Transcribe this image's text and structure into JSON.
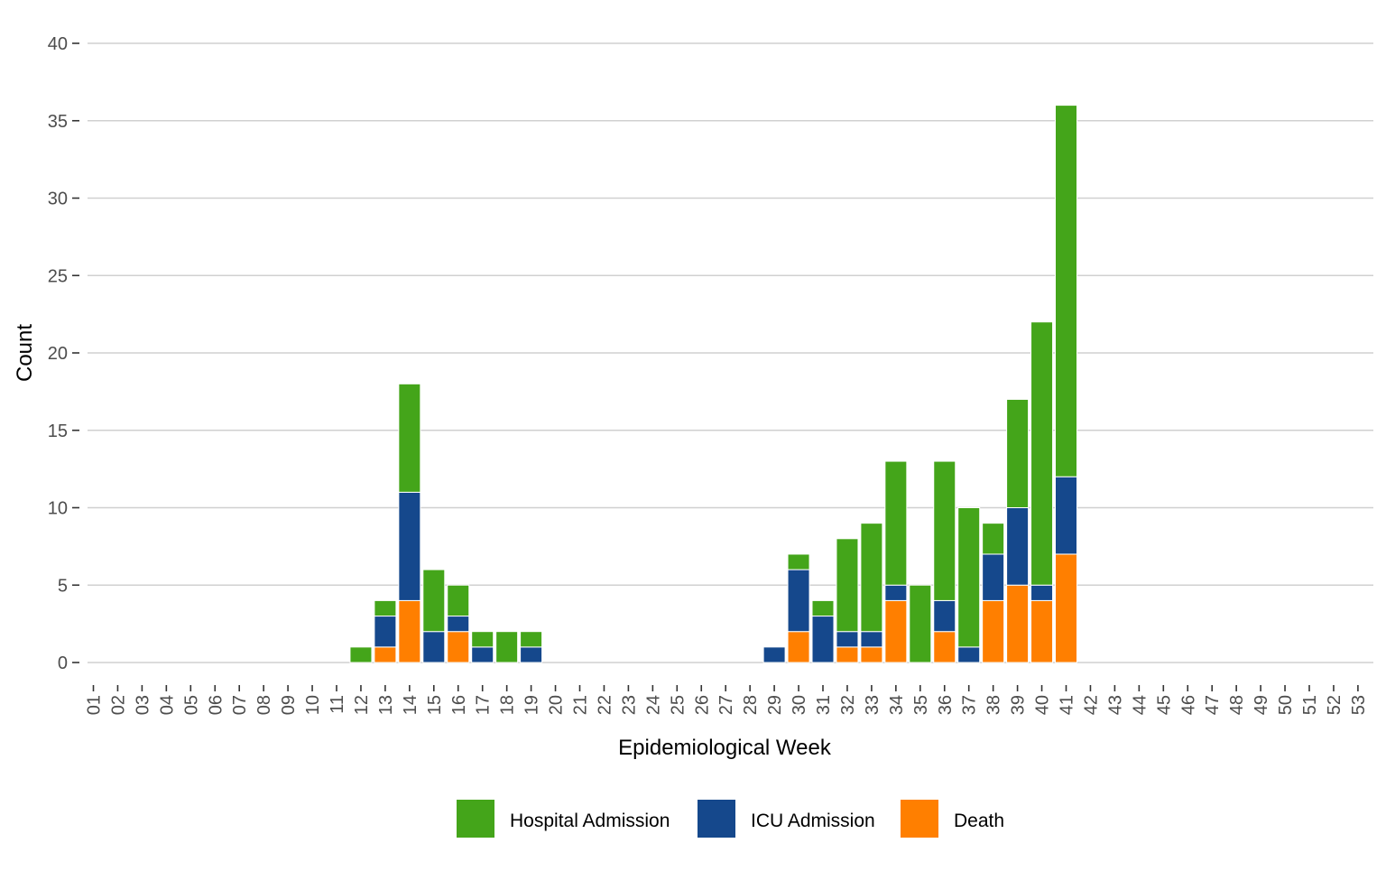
{
  "chart_data": {
    "type": "bar",
    "stacked": true,
    "title": "",
    "xlabel": "Epidemiological Week",
    "ylabel": "Count",
    "ylim": [
      0,
      40
    ],
    "yticks": [
      0,
      5,
      10,
      15,
      20,
      25,
      30,
      35,
      40
    ],
    "grid": "horizontal",
    "legend_position": "bottom",
    "categories": [
      "01",
      "02",
      "03",
      "04",
      "05",
      "06",
      "07",
      "08",
      "09",
      "10",
      "11",
      "12",
      "13",
      "14",
      "15",
      "16",
      "17",
      "18",
      "19",
      "20",
      "21",
      "22",
      "23",
      "24",
      "25",
      "26",
      "27",
      "28",
      "29",
      "30",
      "31",
      "32",
      "33",
      "34",
      "35",
      "36",
      "37",
      "38",
      "39",
      "40",
      "41",
      "42",
      "43",
      "44",
      "45",
      "46",
      "47",
      "48",
      "49",
      "50",
      "51",
      "52",
      "53"
    ],
    "series": [
      {
        "name": "Death",
        "color": "#FF7F00",
        "values": [
          0,
          0,
          0,
          0,
          0,
          0,
          0,
          0,
          0,
          0,
          0,
          0,
          1,
          4,
          0,
          2,
          0,
          0,
          0,
          0,
          0,
          0,
          0,
          0,
          0,
          0,
          0,
          0,
          0,
          2,
          0,
          1,
          1,
          4,
          0,
          2,
          0,
          4,
          5,
          4,
          7,
          0,
          0,
          0,
          0,
          0,
          0,
          0,
          0,
          0,
          0,
          0,
          0
        ]
      },
      {
        "name": "ICU Admission",
        "color": "#15488C",
        "values": [
          0,
          0,
          0,
          0,
          0,
          0,
          0,
          0,
          0,
          0,
          0,
          0,
          2,
          7,
          2,
          1,
          1,
          0,
          1,
          0,
          0,
          0,
          0,
          0,
          0,
          0,
          0,
          0,
          1,
          4,
          3,
          1,
          1,
          1,
          0,
          2,
          1,
          3,
          5,
          1,
          5,
          0,
          0,
          0,
          0,
          0,
          0,
          0,
          0,
          0,
          0,
          0,
          0
        ]
      },
      {
        "name": "Hospital Admission",
        "color": "#44A51A",
        "values": [
          0,
          0,
          0,
          0,
          0,
          0,
          0,
          0,
          0,
          0,
          0,
          1,
          1,
          7,
          4,
          2,
          1,
          2,
          1,
          0,
          0,
          0,
          0,
          0,
          0,
          0,
          0,
          0,
          0,
          1,
          1,
          6,
          7,
          8,
          5,
          9,
          9,
          2,
          7,
          17,
          24,
          0,
          0,
          0,
          0,
          0,
          0,
          0,
          0,
          0,
          0,
          0,
          0
        ]
      }
    ],
    "legend_order": [
      "Hospital Admission",
      "ICU Admission",
      "Death"
    ]
  }
}
